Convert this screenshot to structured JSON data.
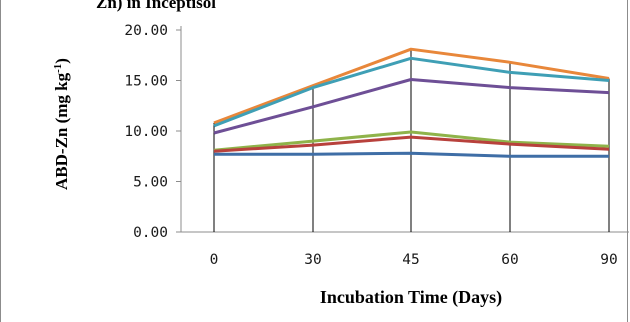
{
  "chart_data": {
    "type": "line",
    "title": "Zn) in Inceptisol",
    "xlabel": "Incubation Time (Days)",
    "ylabel": "ABD-Zn (mg kg",
    "ylabel_sup": "-1",
    "ylabel_close": ")",
    "categories": [
      "0",
      "30",
      "45",
      "60",
      "90"
    ],
    "y_ticks": [
      "0.00",
      "5.00",
      "10.00",
      "15.00",
      "20.00"
    ],
    "ylim": [
      0,
      20
    ],
    "grid": false,
    "drop_lines": true,
    "series": [
      {
        "color": "#e8873a",
        "values": [
          10.8,
          14.5,
          18.1,
          16.8,
          15.2
        ]
      },
      {
        "color": "#3f9fb5",
        "values": [
          10.5,
          14.3,
          17.2,
          15.8,
          15.0
        ]
      },
      {
        "color": "#6e4f96",
        "values": [
          9.8,
          12.4,
          15.1,
          14.3,
          13.8
        ]
      },
      {
        "color": "#8fb34a",
        "values": [
          8.1,
          9.0,
          9.9,
          8.9,
          8.5
        ]
      },
      {
        "color": "#b8413c",
        "values": [
          8.0,
          8.6,
          9.4,
          8.7,
          8.2
        ]
      },
      {
        "color": "#3f6ea6",
        "values": [
          7.7,
          7.7,
          7.8,
          7.5,
          7.5
        ]
      }
    ]
  }
}
